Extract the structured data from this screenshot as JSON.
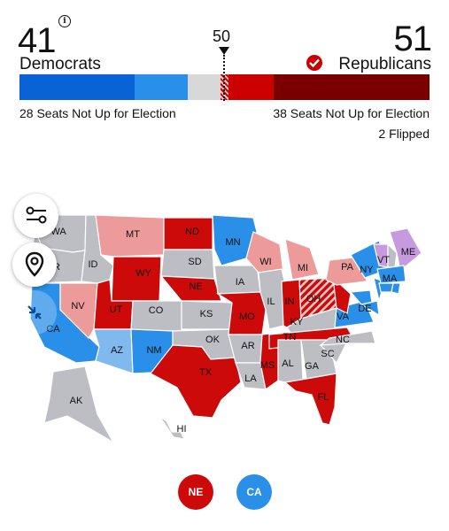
{
  "dem": {
    "count": "41",
    "label": "Democrats",
    "sub": "28 Seats Not Up for Election"
  },
  "rep": {
    "count": "51",
    "label": "Republicans",
    "sub": "38 Seats Not Up for Election",
    "flipped": "2 Flipped"
  },
  "majority_label": "50",
  "seat_bar": [
    {
      "name": "dem-not-up",
      "seats": 28,
      "color": "#0a63d6"
    },
    {
      "name": "dem-won",
      "seats": 13,
      "color": "#2a8fe8"
    },
    {
      "name": "undecided",
      "seats": 8,
      "color": "#d8d8d8"
    },
    {
      "name": "rep-flipped",
      "seats": 2,
      "color": "#cc0000"
    },
    {
      "name": "rep-won",
      "seats": 11,
      "color": "#cc0000"
    },
    {
      "name": "rep-not-up",
      "seats": 38,
      "color": "#7a0000"
    }
  ],
  "colors": {
    "rep": "#cc0a0a",
    "rep_lead": "#ec9a9a",
    "dem": "#2a8fe8",
    "dem_lead": "#7fb9ee",
    "none": "#bdbdc4",
    "ind": "#c79ae0",
    "dem_dark": "#0f69d8"
  },
  "states": {
    "WA": "WA",
    "OR": "R",
    "CA": "CA",
    "NV": "NV",
    "ID": "ID",
    "MT": "MT",
    "WY": "WY",
    "UT": "UT",
    "CO": "CO",
    "AZ": "AZ",
    "NM": "NM",
    "ND": "ND",
    "SD": "SD",
    "NE": "NE",
    "KS": "KS",
    "OK": "OK",
    "TX": "TX",
    "MN": "MN",
    "IA": "IA",
    "MO": "MO",
    "AR": "AR",
    "LA": "LA",
    "WI": "WI",
    "IL": "IL",
    "MS": "MS",
    "MI": "MI",
    "IN": "IN",
    "KY": "KY",
    "TN": "TN",
    "AL": "AL",
    "GA": "GA",
    "FL": "FL",
    "OH": "OH",
    "SC": "SC",
    "NC": "NC",
    "VA": "VA",
    "PA": "PA",
    "NY": "NY",
    "DE": "DE",
    "VT": "VT",
    "ME": "ME",
    "MA": "MA",
    "AK": "AK",
    "HI": "HI"
  },
  "map_buttons": {
    "filter": "filter-icon",
    "location": "location-pin-icon",
    "collapse": "collapse-arrows-icon"
  },
  "pills": {
    "ne": "NE",
    "ca": "CA"
  }
}
